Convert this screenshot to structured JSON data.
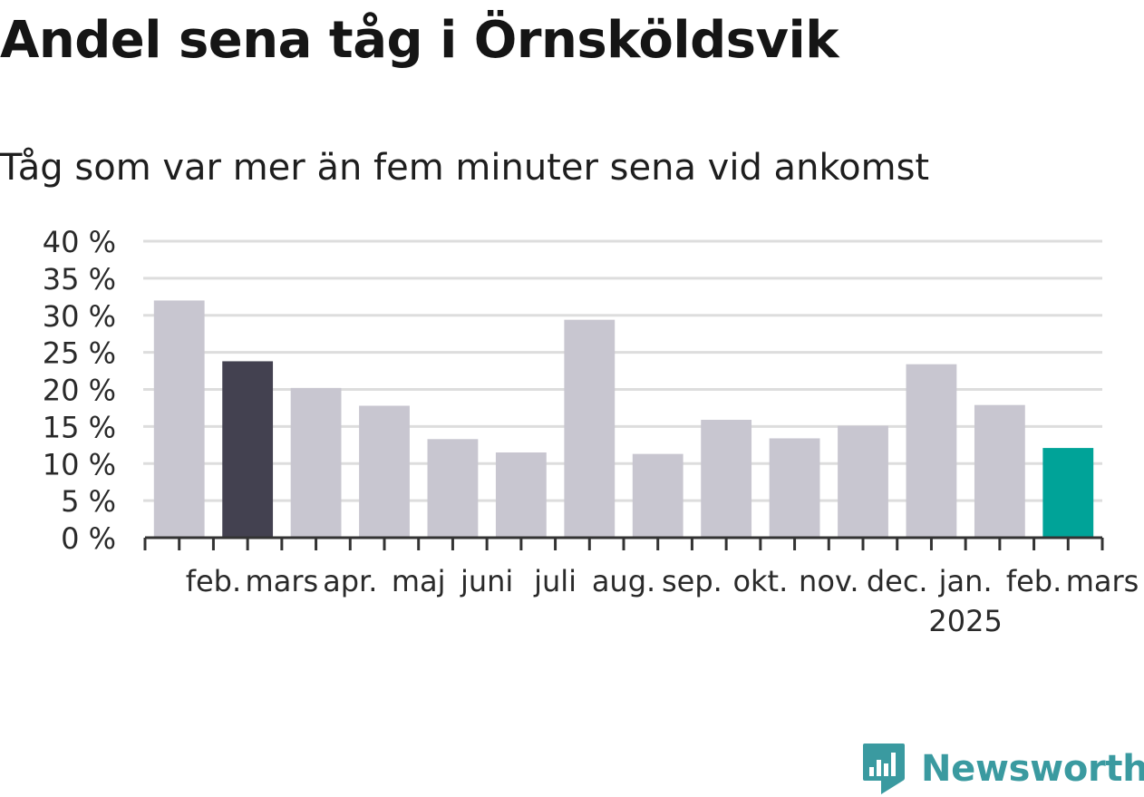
{
  "title": "Andel sena tåg i Örnsköldsvik",
  "subtitle": "Tåg som var mer än fem minuter sena vid ankomst",
  "logo": {
    "text": "Newsworthy",
    "icon": "newsworthy-chart-icon",
    "color": "#3a9aa0"
  },
  "colors": {
    "default": "#c8c6d0",
    "highlight_previous": "#434150",
    "highlight_latest": "#00a398",
    "grid": "#dddddd",
    "axis": "#333333"
  },
  "chart_data": {
    "type": "bar",
    "title": "Andel sena tåg i Örnsköldsvik",
    "subtitle": "Tåg som var mer än fem minuter sena vid ankomst",
    "categories": [
      "feb.",
      "mars",
      "apr.",
      "maj",
      "juni",
      "juli",
      "aug.",
      "sep.",
      "okt.",
      "nov.",
      "dec.",
      "jan.",
      "feb.",
      "mars"
    ],
    "year_labels": [
      "",
      "",
      "",
      "",
      "",
      "",
      "",
      "",
      "",
      "",
      "",
      "2025",
      "",
      ""
    ],
    "values": [
      32,
      23.8,
      20.2,
      17.8,
      13.3,
      11.5,
      29.4,
      11.3,
      15.9,
      13.4,
      15.1,
      23.4,
      17.9,
      12.1
    ],
    "bar_colors": [
      "#c8c6d0",
      "#434150",
      "#c8c6d0",
      "#c8c6d0",
      "#c8c6d0",
      "#c8c6d0",
      "#c8c6d0",
      "#c8c6d0",
      "#c8c6d0",
      "#c8c6d0",
      "#c8c6d0",
      "#c8c6d0",
      "#c8c6d0",
      "#00a398"
    ],
    "ylim": [
      0,
      40
    ],
    "yticks": [
      0,
      5,
      10,
      15,
      20,
      25,
      30,
      35,
      40
    ],
    "ytick_labels": [
      "0 %",
      "5 %",
      "10 %",
      "15 %",
      "20 %",
      "25 %",
      "30 %",
      "35 %",
      "40 %"
    ],
    "grid": true,
    "legend": "none"
  }
}
